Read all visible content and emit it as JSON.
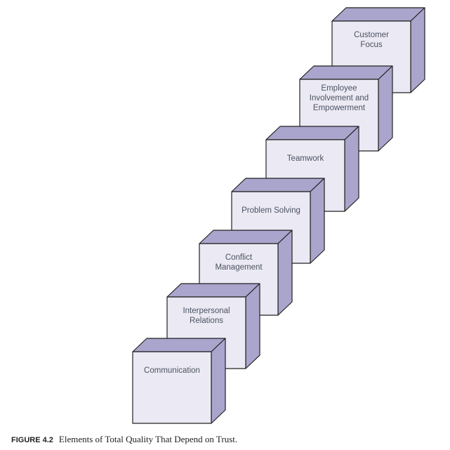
{
  "colors": {
    "front": "#ebe9f3",
    "side": "#aaa5cc",
    "stroke": "#222222",
    "text": "#4b5363"
  },
  "cubes": [
    {
      "label": "Communication"
    },
    {
      "label": "Interpersonal\nRelations"
    },
    {
      "label": "Conflict\nManagement"
    },
    {
      "label": "Problem Solving"
    },
    {
      "label": "Teamwork"
    },
    {
      "label": "Employee\nInvolvement and\nEmpowerment"
    },
    {
      "label": "Customer\nFocus"
    }
  ],
  "caption": {
    "number": "FIGURE 4.2",
    "text": "Elements of Total Quality That Depend on Trust."
  }
}
